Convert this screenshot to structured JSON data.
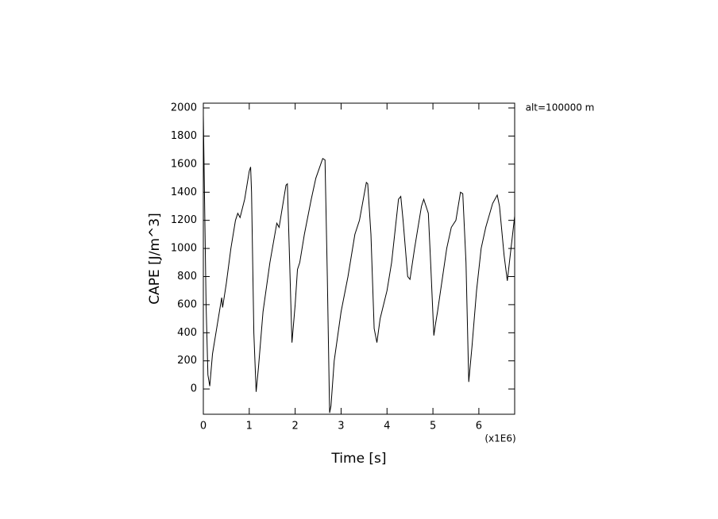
{
  "chart_data": {
    "type": "line",
    "annotation": "alt=100000 m",
    "x_label": "Time [s]",
    "x_scale_label": "(x1E6)",
    "y_label": "CAPE [J/m^3]",
    "xlim": [
      0,
      6.78
    ],
    "ylim": [
      -180,
      2034
    ],
    "xticks": [
      0,
      1,
      2,
      3,
      4,
      5,
      6
    ],
    "yticks": [
      0,
      200,
      400,
      600,
      800,
      1000,
      1200,
      1400,
      1600,
      1800,
      2000
    ],
    "color": "#000000",
    "x": [
      0,
      0.02,
      0.06,
      0.1,
      0.14,
      0.2,
      0.3,
      0.4,
      0.42,
      0.5,
      0.6,
      0.7,
      0.75,
      0.8,
      0.9,
      1.0,
      1.03,
      1.05,
      1.1,
      1.15,
      1.2,
      1.3,
      1.45,
      1.6,
      1.65,
      1.8,
      1.83,
      1.88,
      1.93,
      2.0,
      2.05,
      2.1,
      2.2,
      2.35,
      2.45,
      2.6,
      2.65,
      2.7,
      2.75,
      2.78,
      2.85,
      3.0,
      3.15,
      3.3,
      3.4,
      3.55,
      3.58,
      3.65,
      3.72,
      3.78,
      3.85,
      4.0,
      4.1,
      4.25,
      4.3,
      4.35,
      4.45,
      4.5,
      4.6,
      4.75,
      4.8,
      4.9,
      4.95,
      5.02,
      5.05,
      5.1,
      5.3,
      5.4,
      5.5,
      5.6,
      5.65,
      5.72,
      5.78,
      5.85,
      5.95,
      6.05,
      6.15,
      6.3,
      6.4,
      6.45,
      6.55,
      6.62,
      6.7,
      6.78
    ],
    "values": [
      1950,
      1500,
      600,
      100,
      20,
      250,
      450,
      650,
      580,
      750,
      1000,
      1200,
      1250,
      1220,
      1350,
      1550,
      1580,
      1400,
      400,
      -20,
      150,
      550,
      900,
      1180,
      1150,
      1450,
      1460,
      900,
      330,
      600,
      850,
      900,
      1100,
      1350,
      1500,
      1640,
      1630,
      800,
      -170,
      -120,
      200,
      550,
      800,
      1100,
      1200,
      1470,
      1460,
      1100,
      430,
      330,
      500,
      700,
      900,
      1350,
      1370,
      1200,
      800,
      780,
      1000,
      1300,
      1350,
      1250,
      900,
      380,
      450,
      550,
      1000,
      1150,
      1200,
      1400,
      1390,
      900,
      50,
      300,
      700,
      1000,
      1150,
      1320,
      1380,
      1300,
      950,
      770,
      1000,
      1230
    ]
  }
}
